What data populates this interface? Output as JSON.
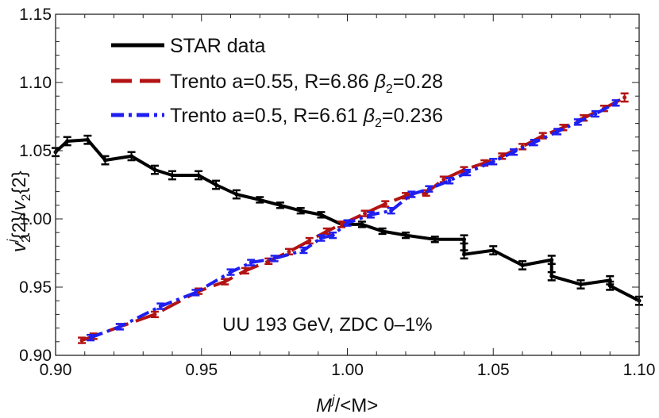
{
  "chart_data": {
    "type": "line",
    "xlabel": {
      "main": "M",
      "sup": "j",
      "rest": "/<M>"
    },
    "ylabel": {
      "v1": "v",
      "sub1": "2",
      "sup1": "j",
      "mid": "{2}/",
      "v2": "v",
      "sub2": "2",
      "end": "{2}"
    },
    "xlim": [
      0.9,
      1.1
    ],
    "ylim": [
      0.9,
      1.15
    ],
    "xticks": [
      0.9,
      0.95,
      1.0,
      1.05,
      1.1
    ],
    "xtick_labels": [
      "0.90",
      "0.95",
      "1.00",
      "1.05",
      "1.10"
    ],
    "yticks": [
      0.9,
      0.95,
      1.0,
      1.05,
      1.1,
      1.15
    ],
    "ytick_labels": [
      "0.90",
      "0.95",
      "1.00",
      "1.05",
      "1.10",
      "1.15"
    ],
    "grid": false,
    "legend_position": "top-left",
    "annotation": "UU 193 GeV, ZDC 0–1%",
    "series": [
      {
        "name": "STAR data",
        "color": "#000000",
        "style": "solid",
        "x": [
          0.9,
          0.904,
          0.911,
          0.917,
          0.926,
          0.934,
          0.94,
          0.949,
          0.955,
          0.962,
          0.97,
          0.977,
          0.984,
          0.991,
          0.998,
          1.005,
          1.012,
          1.02,
          1.03,
          1.04,
          1.04,
          1.05,
          1.06,
          1.07,
          1.07,
          1.08,
          1.09,
          1.09,
          1.1
        ],
        "y": [
          1.049,
          1.057,
          1.058,
          1.043,
          1.046,
          1.036,
          1.032,
          1.032,
          1.025,
          1.018,
          1.014,
          1.01,
          1.006,
          1.003,
          0.996,
          0.996,
          0.991,
          0.988,
          0.985,
          0.985,
          0.974,
          0.977,
          0.966,
          0.97,
          0.958,
          0.952,
          0.955,
          0.951,
          0.94
        ],
        "err": [
          0.003,
          0.003,
          0.003,
          0.003,
          0.003,
          0.003,
          0.003,
          0.003,
          0.003,
          0.003,
          0.002,
          0.002,
          0.002,
          0.002,
          0.002,
          0.002,
          0.002,
          0.002,
          0.002,
          0.003,
          0.003,
          0.003,
          0.003,
          0.003,
          0.003,
          0.003,
          0.003,
          0.003,
          0.003
        ]
      },
      {
        "name": "Trento a=0.55, R=6.86 β₂=0.28",
        "label_main": "Trento a=0.55, R=6.86 ",
        "label_beta": "β",
        "label_sub": "2",
        "label_end": "=0.28",
        "color": "#b31313",
        "style": "dashed",
        "x": [
          0.909,
          0.913,
          0.922,
          0.934,
          0.949,
          0.958,
          0.965,
          0.973,
          0.98,
          0.987,
          0.993,
          0.998,
          1.006,
          1.013,
          1.02,
          1.027,
          1.033,
          1.04,
          1.047,
          1.053,
          1.06,
          1.067,
          1.074,
          1.081,
          1.088,
          1.095
        ],
        "y": [
          0.911,
          0.914,
          0.921,
          0.93,
          0.947,
          0.954,
          0.962,
          0.969,
          0.976,
          0.984,
          0.991,
          0.996,
          1.004,
          1.011,
          1.017,
          1.019,
          1.029,
          1.036,
          1.041,
          1.046,
          1.053,
          1.061,
          1.067,
          1.074,
          1.081,
          1.089
        ],
        "err": [
          0.002,
          0.002,
          0.002,
          0.002,
          0.002,
          0.002,
          0.002,
          0.002,
          0.002,
          0.002,
          0.002,
          0.002,
          0.002,
          0.002,
          0.002,
          0.002,
          0.002,
          0.002,
          0.002,
          0.002,
          0.002,
          0.002,
          0.002,
          0.002,
          0.002,
          0.003
        ]
      },
      {
        "name": "Trento a=0.5, R=6.61 β₂=0.236",
        "label_main": "Trento a=0.5, R=6.61 ",
        "label_beta": "β",
        "label_sub": "2",
        "label_end": "=0.236",
        "color": "#1f1ff0",
        "style": "dashdot",
        "x": [
          0.912,
          0.922,
          0.936,
          0.948,
          0.96,
          0.967,
          0.975,
          0.985,
          0.991,
          0.995,
          1.0,
          1.008,
          1.015,
          1.022,
          1.028,
          1.035,
          1.041,
          1.05,
          1.057,
          1.064,
          1.072,
          1.079,
          1.085,
          1.092
        ],
        "y": [
          0.913,
          0.921,
          0.936,
          0.946,
          0.961,
          0.968,
          0.971,
          0.977,
          0.986,
          0.988,
          0.997,
          1.003,
          1.006,
          1.018,
          1.022,
          1.028,
          1.034,
          1.042,
          1.049,
          1.056,
          1.064,
          1.071,
          1.077,
          1.085
        ],
        "err": [
          0.002,
          0.002,
          0.002,
          0.002,
          0.002,
          0.002,
          0.002,
          0.002,
          0.002,
          0.002,
          0.002,
          0.002,
          0.002,
          0.002,
          0.002,
          0.002,
          0.002,
          0.002,
          0.002,
          0.002,
          0.002,
          0.002,
          0.002,
          0.002
        ]
      }
    ]
  }
}
